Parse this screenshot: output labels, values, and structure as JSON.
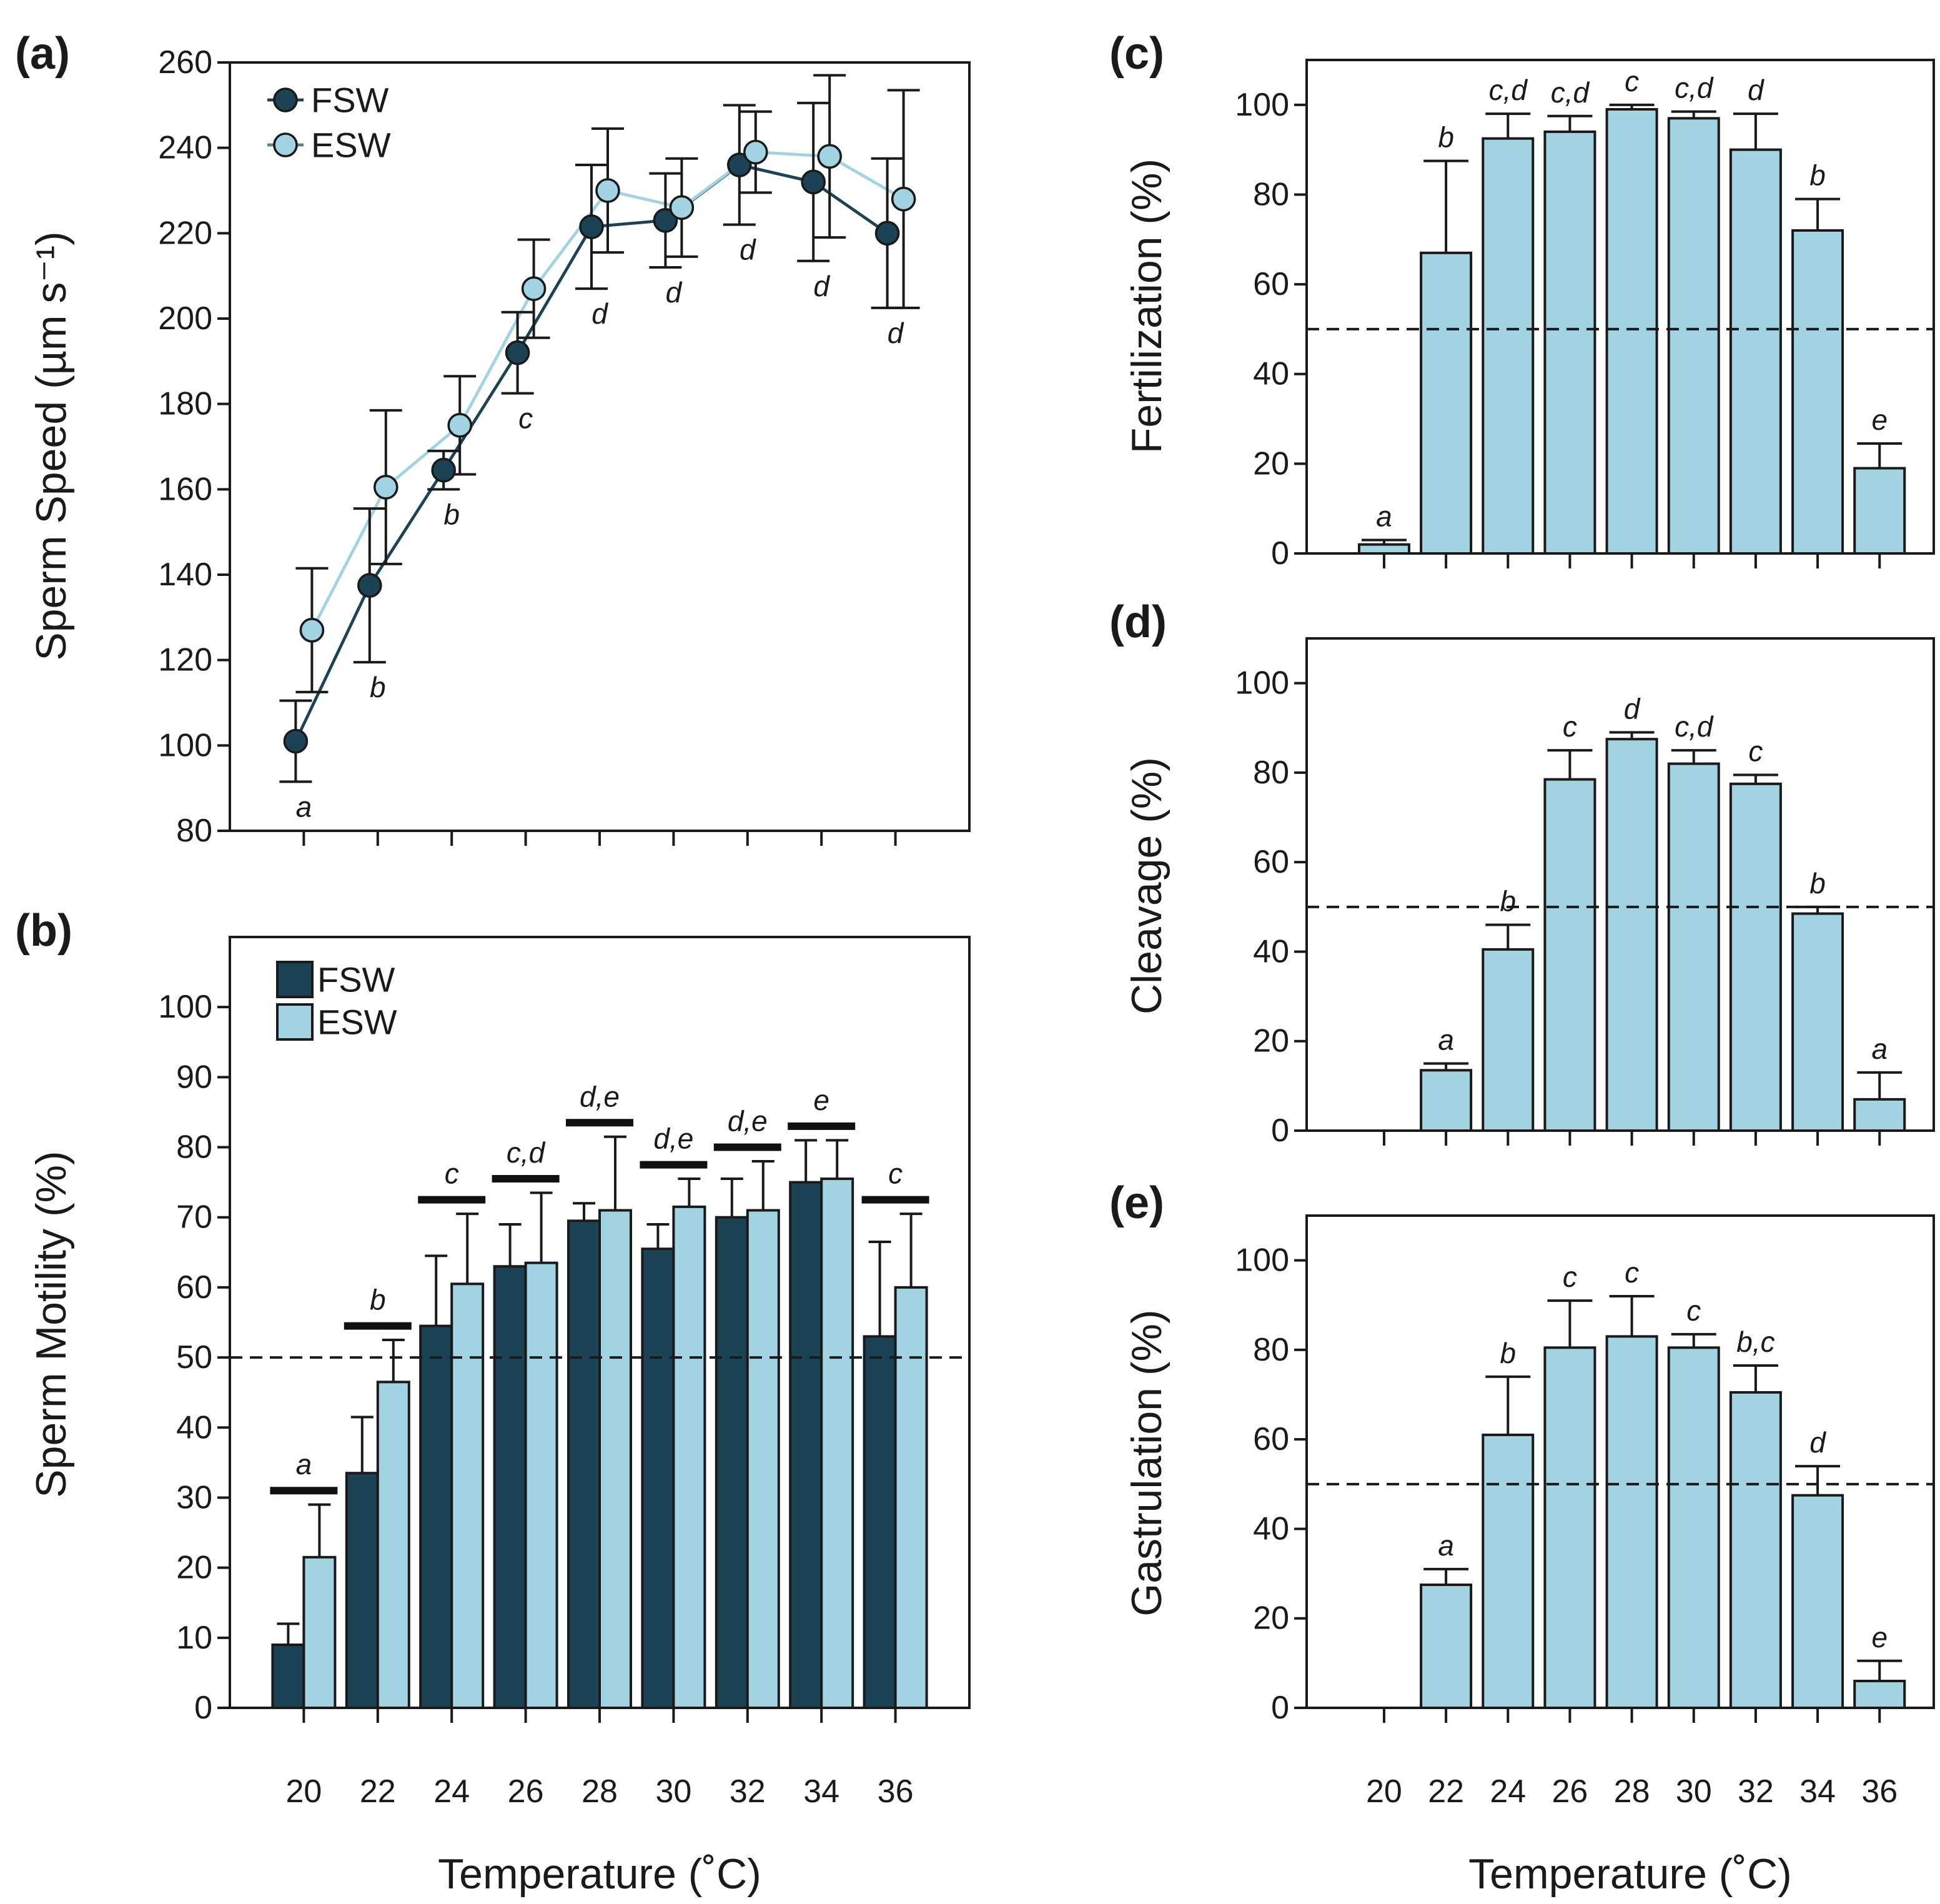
{
  "chart_data": [
    {
      "panel_label": "(a)",
      "type": "line",
      "title": "",
      "xlabel": "",
      "ylabel": "Sperm Speed (µm s⁻¹)",
      "xlim": [
        18,
        38
      ],
      "ylim": [
        80,
        260
      ],
      "yticks": [
        80,
        100,
        120,
        140,
        160,
        180,
        200,
        220,
        240,
        260
      ],
      "x": [
        20,
        22,
        24,
        26,
        28,
        30,
        32,
        34,
        36
      ],
      "legend": "top-left",
      "series": [
        {
          "name": "FSW",
          "color": "#1c4256",
          "values": [
            101,
            137.5,
            164.5,
            192,
            221.5,
            223,
            236,
            232,
            220
          ],
          "errors": [
            9.5,
            18,
            4.5,
            9.5,
            14.5,
            11,
            14,
            18.5,
            17.5
          ]
        },
        {
          "name": "ESW",
          "color": "#a2d3e2",
          "values": [
            127,
            160.5,
            175,
            207,
            230,
            226,
            239,
            238,
            228
          ],
          "errors": [
            14.5,
            18,
            11.5,
            11.5,
            14.5,
            11.5,
            9.5,
            19,
            25.5
          ]
        }
      ],
      "letters": [
        "a",
        "b",
        "b",
        "c",
        "d",
        "d",
        "d",
        "d",
        "d"
      ]
    },
    {
      "panel_label": "(b)",
      "type": "bar",
      "title": "",
      "xlabel": "Temperature (˚C)",
      "ylabel": "Sperm Motility (%)",
      "xlim": [
        18,
        38
      ],
      "ylim": [
        0,
        110
      ],
      "yticks": [
        0,
        10,
        20,
        30,
        40,
        50,
        60,
        70,
        80,
        90,
        100
      ],
      "x": [
        20,
        22,
        24,
        26,
        28,
        30,
        32,
        34,
        36
      ],
      "legend": "top-left",
      "reference_line": 50,
      "series": [
        {
          "name": "FSW",
          "color": "#1c4256",
          "values": [
            9,
            33.5,
            54.5,
            63,
            69.5,
            65.5,
            70,
            75,
            53
          ],
          "errors": [
            3,
            8,
            10,
            6,
            2.5,
            3.5,
            5.5,
            6,
            13.5
          ]
        },
        {
          "name": "ESW",
          "color": "#a2d3e2",
          "values": [
            21.5,
            46.5,
            60.5,
            63.5,
            71,
            71.5,
            71,
            75.5,
            60
          ],
          "errors": [
            7.5,
            6,
            10,
            10,
            10.5,
            4,
            7,
            5.5,
            10.5
          ]
        }
      ],
      "letters": [
        "a",
        "b",
        "c",
        "c,d",
        "d,e",
        "d,e",
        "d,e",
        "e",
        "c"
      ]
    },
    {
      "panel_label": "(c)",
      "type": "bar",
      "title": "",
      "xlabel": "",
      "ylabel": "Fertilization (%)",
      "xlim": [
        17.5,
        37.75
      ],
      "ylim": [
        0,
        110
      ],
      "yticks": [
        0,
        20,
        40,
        60,
        80,
        100
      ],
      "x": [
        20,
        22,
        24,
        26,
        28,
        30,
        32,
        34,
        36
      ],
      "reference_line": 50,
      "series": [
        {
          "color": "#a2d3e2",
          "values": [
            2,
            67,
            92.5,
            94,
            99,
            97,
            90,
            72,
            19
          ],
          "errors": [
            1,
            20.5,
            5.5,
            3.5,
            1,
            1.5,
            8,
            7,
            5.5
          ]
        }
      ],
      "letters": [
        "a",
        "b",
        "c,d",
        "c,d",
        "c",
        "c,d",
        "d",
        "b",
        "e"
      ]
    },
    {
      "panel_label": "(d)",
      "type": "bar",
      "title": "",
      "xlabel": "",
      "ylabel": "Cleavage (%)",
      "xlim": [
        17.5,
        37.75
      ],
      "ylim": [
        0,
        110
      ],
      "yticks": [
        0,
        20,
        40,
        60,
        80,
        100
      ],
      "x": [
        20,
        22,
        24,
        26,
        28,
        30,
        32,
        34,
        36
      ],
      "reference_line": 50,
      "series": [
        {
          "color": "#a2d3e2",
          "values": [
            0,
            13.5,
            40.5,
            78.5,
            87.5,
            82,
            77.5,
            48.5,
            7
          ],
          "errors": [
            0,
            1.5,
            5.5,
            6.5,
            1.5,
            3,
            2,
            1.5,
            6
          ]
        }
      ],
      "letters": [
        null,
        "a",
        "b",
        "c",
        "d",
        "c,d",
        "c",
        "b",
        "a"
      ]
    },
    {
      "panel_label": "(e)",
      "type": "bar",
      "title": "",
      "xlabel": "Temperature (˚C)",
      "ylabel": "Gastrulation (%)",
      "xlim": [
        17.5,
        37.75
      ],
      "ylim": [
        0,
        110
      ],
      "yticks": [
        0,
        20,
        40,
        60,
        80,
        100
      ],
      "x": [
        20,
        22,
        24,
        26,
        28,
        30,
        32,
        34,
        36
      ],
      "reference_line": 50,
      "series": [
        {
          "color": "#a2d3e2",
          "values": [
            0,
            27.5,
            61,
            80.5,
            83,
            80.5,
            70.5,
            47.5,
            6
          ],
          "errors": [
            0,
            3.5,
            13,
            10.5,
            9,
            3,
            6,
            6.5,
            4.5
          ]
        }
      ],
      "letters": [
        null,
        "a",
        "b",
        "c",
        "c",
        "c",
        "b,c",
        "d",
        "e"
      ]
    }
  ]
}
